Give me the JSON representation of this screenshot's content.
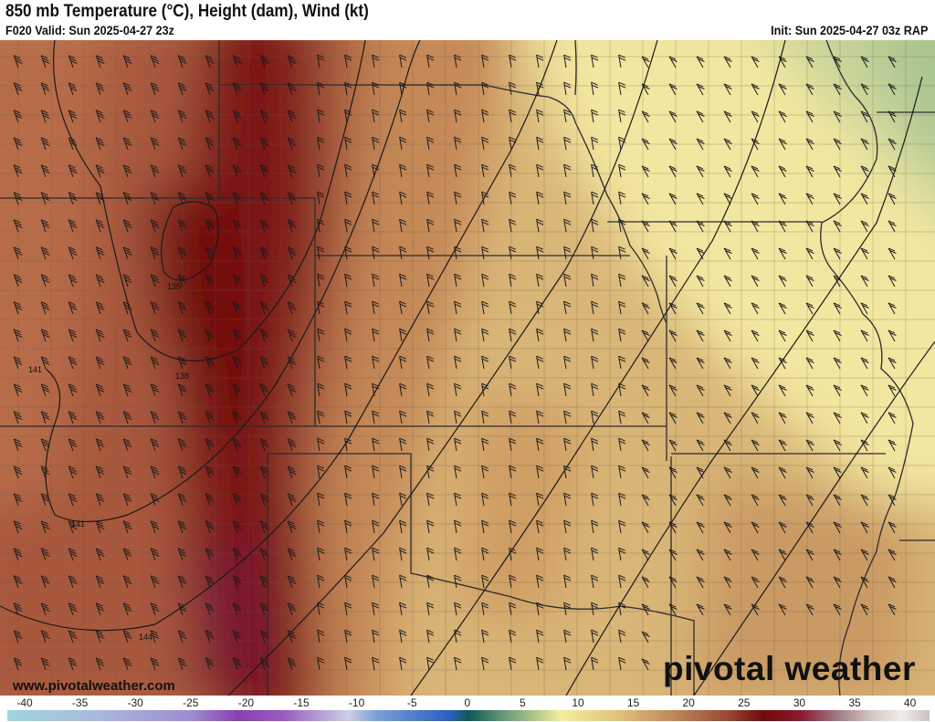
{
  "header": {
    "title": "850 mb Temperature (°C), Height (dam), Wind (kt)",
    "valid": "F020 Valid: Sun 2025-04-27 23z",
    "init": "Init: Sun 2025-04-27 03z RAP"
  },
  "map": {
    "contour_labels": [
      "135",
      "138",
      "141",
      "141",
      "144"
    ],
    "watermark_url": "www.pivotalweather.com",
    "logo": "pivotal weather"
  },
  "colorbar": {
    "ticks": [
      "-40",
      "-35",
      "-30",
      "-25",
      "-20",
      "-15",
      "-10",
      "-5",
      "0",
      "5",
      "10",
      "15",
      "20",
      "25",
      "30",
      "35",
      "40"
    ],
    "colors": {
      "cold": "#9fd6dc",
      "purple": "#8a3fb0",
      "blue": "#2a5fbf",
      "teal": "#0d5a55",
      "yellow": "#f2ee9c",
      "tan": "#c08a5a",
      "maroon": "#700a0a",
      "light": "#f0ecea"
    }
  }
}
